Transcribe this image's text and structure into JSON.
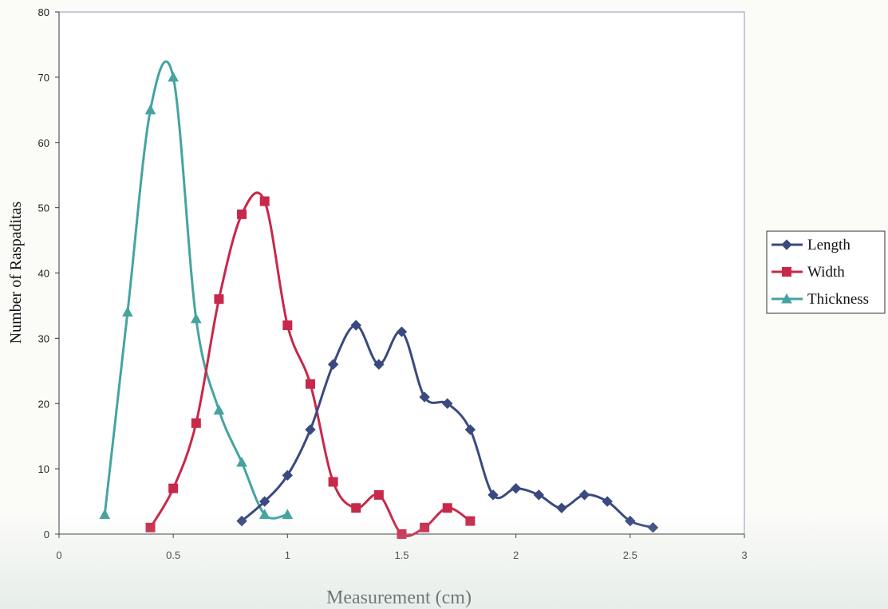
{
  "chart_data": {
    "type": "line",
    "xlabel": "Measurement (cm)",
    "ylabel": "Number of Raspaditas",
    "xlim": [
      0,
      3
    ],
    "ylim": [
      0,
      80
    ],
    "x_ticks": [
      0,
      0.5,
      1,
      1.5,
      2,
      2.5,
      3
    ],
    "y_ticks": [
      0,
      10,
      20,
      30,
      40,
      50,
      60,
      70,
      80
    ],
    "grid": false,
    "smoothed": true,
    "legend_position": "right",
    "series": [
      {
        "name": "Length",
        "color": "#3a4a7e",
        "marker": "diamond",
        "x": [
          0.8,
          0.9,
          1.0,
          1.1,
          1.2,
          1.3,
          1.4,
          1.5,
          1.6,
          1.7,
          1.8,
          1.9,
          2.0,
          2.1,
          2.2,
          2.3,
          2.4,
          2.5,
          2.6
        ],
        "y": [
          2,
          5,
          9,
          16,
          26,
          32,
          26,
          31,
          21,
          20,
          16,
          6,
          7,
          6,
          4,
          6,
          5,
          2,
          1
        ]
      },
      {
        "name": "Width",
        "color": "#c8284a",
        "marker": "square",
        "x": [
          0.4,
          0.5,
          0.6,
          0.7,
          0.8,
          0.9,
          1.0,
          1.1,
          1.2,
          1.3,
          1.4,
          1.5,
          1.6,
          1.7,
          1.8
        ],
        "y": [
          1,
          7,
          17,
          36,
          49,
          51,
          32,
          23,
          8,
          4,
          6,
          0,
          1,
          4,
          2
        ]
      },
      {
        "name": "Thickness",
        "color": "#45a4a0",
        "marker": "triangle",
        "x": [
          0.2,
          0.3,
          0.4,
          0.5,
          0.6,
          0.7,
          0.8,
          0.9,
          1.0
        ],
        "y": [
          3,
          34,
          65,
          70,
          33,
          19,
          11,
          3,
          3
        ]
      }
    ]
  }
}
